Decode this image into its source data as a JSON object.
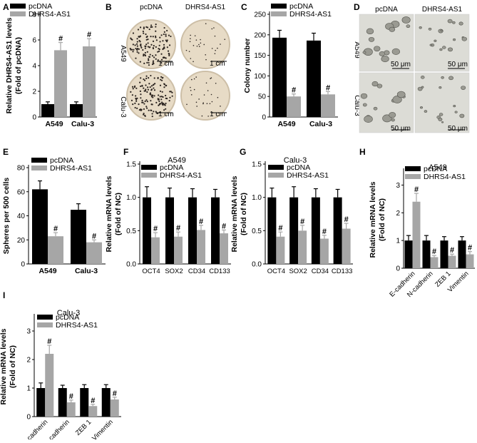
{
  "panel_letters": [
    "A",
    "B",
    "C",
    "D",
    "E",
    "F",
    "G",
    "H",
    "I"
  ],
  "legend": {
    "ctrl": "pcDNA",
    "treat": "DHRS4-AS1"
  },
  "colors": {
    "ctrl": "#000000",
    "treat": "#a6a6a6",
    "dish_bg": "#e7dbc6",
    "dish_rim": "#cdbfa7",
    "micro_bg": "#dcdcd6"
  },
  "photo_B": {
    "col_labels": [
      "pcDNA",
      "DHRS4-AS1"
    ],
    "row_labels": [
      "A549",
      "Calu-3"
    ],
    "scale": "1 cm"
  },
  "photo_D": {
    "col_labels": [
      "pcDNA",
      "DHRS4-AS1"
    ],
    "row_labels": [
      "A549",
      "Calu-3"
    ],
    "scale": "50 μm"
  },
  "sig_mark": "#",
  "chart_data": [
    {
      "id": "A",
      "type": "bar",
      "title": "",
      "ylabel": "Relative DHRS4-AS1 levels (Fold of pcDNA)",
      "ylabel_lines": [
        "Relative DHRS4-AS1 levels",
        "(Fold of pcDNA)"
      ],
      "ylim": [
        0,
        8
      ],
      "yticks": [
        0,
        2,
        4,
        6,
        8
      ],
      "categories": [
        "A549",
        "Calu-3"
      ],
      "series": [
        {
          "name": "pcDNA",
          "values": [
            1.0,
            1.0
          ],
          "errors": [
            0.18,
            0.18
          ]
        },
        {
          "name": "DHRS4-AS1",
          "values": [
            5.2,
            5.5
          ],
          "errors": [
            0.6,
            0.6
          ]
        }
      ],
      "sig": [
        false,
        true
      ]
    },
    {
      "id": "C",
      "type": "bar",
      "title": "",
      "ylabel": "Colony number",
      "ylabel_lines": [
        "Colony number"
      ],
      "ylim": [
        0,
        250
      ],
      "yticks": [
        0,
        50,
        100,
        150,
        200,
        250
      ],
      "categories": [
        "A549",
        "Calu-3"
      ],
      "series": [
        {
          "name": "pcDNA",
          "values": [
            193,
            186
          ],
          "errors": [
            18,
            18
          ]
        },
        {
          "name": "DHRS4-AS1",
          "values": [
            50,
            55
          ],
          "errors": [
            6,
            7
          ]
        }
      ],
      "sig": [
        false,
        true
      ]
    },
    {
      "id": "E",
      "type": "bar",
      "title": "",
      "ylabel": "Spheres per 500 cells",
      "ylabel_lines": [
        "Spheres per 500 cells"
      ],
      "ylim": [
        0,
        80
      ],
      "yticks": [
        0,
        20,
        40,
        60,
        80
      ],
      "categories": [
        "A549",
        "Calu-3"
      ],
      "series": [
        {
          "name": "pcDNA",
          "values": [
            62,
            45
          ],
          "errors": [
            7,
            5
          ]
        },
        {
          "name": "DHRS4-AS1",
          "values": [
            23,
            18
          ],
          "errors": [
            3,
            2
          ]
        }
      ],
      "sig": [
        false,
        true
      ]
    },
    {
      "id": "F",
      "type": "bar",
      "title": "A549",
      "ylabel": "Relative mRNA levels (Fold of NC)",
      "ylabel_lines": [
        "Relative mRNA levels",
        "(Fold of NC)"
      ],
      "ylim": [
        0,
        1.5
      ],
      "yticks": [
        0.0,
        0.5,
        1.0,
        1.5
      ],
      "categories": [
        "OCT4",
        "SOX2",
        "CD34",
        "CD133"
      ],
      "series": [
        {
          "name": "pcDNA",
          "values": [
            1.0,
            1.0,
            1.0,
            1.0
          ],
          "errors": [
            0.16,
            0.14,
            0.13,
            0.12
          ]
        },
        {
          "name": "DHRS4-AS1",
          "values": [
            0.4,
            0.41,
            0.51,
            0.46
          ],
          "errors": [
            0.07,
            0.07,
            0.07,
            0.05
          ]
        }
      ],
      "sig": [
        false,
        true
      ]
    },
    {
      "id": "G",
      "type": "bar",
      "title": "Calu-3",
      "ylabel": "Relative mRNA levels (Fold of NC)",
      "ylabel_lines": [
        "Relative mRNA levels",
        "(Fold of NC)"
      ],
      "ylim": [
        0,
        1.5
      ],
      "yticks": [
        0.0,
        0.5,
        1.0,
        1.5
      ],
      "categories": [
        "OCT4",
        "SOX2",
        "CD34",
        "CD133"
      ],
      "series": [
        {
          "name": "pcDNA",
          "values": [
            1.0,
            1.0,
            1.0,
            1.0
          ],
          "errors": [
            0.14,
            0.16,
            0.13,
            0.12
          ]
        },
        {
          "name": "DHRS4-AS1",
          "values": [
            0.41,
            0.5,
            0.38,
            0.53
          ],
          "errors": [
            0.07,
            0.08,
            0.05,
            0.08
          ]
        }
      ],
      "sig": [
        false,
        true
      ]
    },
    {
      "id": "H",
      "type": "bar",
      "title": "A549",
      "ylabel": "Relative mRNA levels (Fold of NC)",
      "ylabel_lines": [
        "Relative mRNA levels",
        "(Fold of NC)"
      ],
      "ylim": [
        0,
        3.5
      ],
      "yticks": [
        0,
        1,
        2,
        3
      ],
      "categories": [
        "E-cadherin",
        "N-cadherin",
        "ZEB 1",
        "Vimentin"
      ],
      "series": [
        {
          "name": "pcDNA",
          "values": [
            1.0,
            1.0,
            1.0,
            1.0
          ],
          "errors": [
            0.18,
            0.18,
            0.14,
            0.14
          ]
        },
        {
          "name": "DHRS4-AS1",
          "values": [
            2.4,
            0.4,
            0.45,
            0.5
          ],
          "errors": [
            0.3,
            0.06,
            0.06,
            0.1
          ]
        }
      ],
      "sig": [
        false,
        true
      ]
    },
    {
      "id": "I",
      "type": "bar",
      "title": "Calu-3",
      "ylabel": "Relative mRNA levels (Fold of NC)",
      "ylabel_lines": [
        "Relative mRNA levels",
        "(Fold of NC)"
      ],
      "ylim": [
        0,
        3.5
      ],
      "yticks": [
        0,
        1,
        2,
        3
      ],
      "categories": [
        "E-cadherin",
        "N-cadherin",
        "ZEB 1",
        "Vimentin"
      ],
      "series": [
        {
          "name": "pcDNA",
          "values": [
            1.0,
            1.0,
            1.0,
            1.0
          ],
          "errors": [
            0.18,
            0.1,
            0.12,
            0.12
          ]
        },
        {
          "name": "DHRS4-AS1",
          "values": [
            2.2,
            0.5,
            0.37,
            0.6
          ],
          "errors": [
            0.3,
            0.08,
            0.06,
            0.08
          ]
        }
      ],
      "sig": [
        false,
        true
      ]
    }
  ]
}
